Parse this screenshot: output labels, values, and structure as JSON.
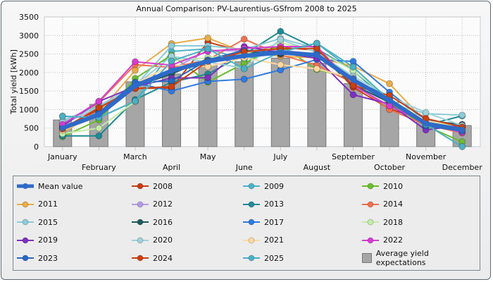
{
  "window": {
    "title": "Annual Comparison: PV-Laurentius-GSfrom 2008 to 2025"
  },
  "chart_data": {
    "type": "line",
    "title": "Annual Comparison: PV-Laurentius-GSfrom 2008 to 2025",
    "xlabel": "",
    "ylabel": "Total yield [kWh]",
    "ylim": [
      0,
      3500
    ],
    "yticks": [
      0,
      500,
      1000,
      1500,
      2000,
      2500,
      3000,
      3500
    ],
    "grid": true,
    "legend_position": "bottom",
    "categories": [
      "January",
      "February",
      "March",
      "April",
      "May",
      "June",
      "July",
      "August",
      "September",
      "October",
      "November",
      "December"
    ],
    "bars": {
      "name": "Average yield expectations",
      "color": "#a6a6a6",
      "values": [
        720,
        1140,
        1750,
        1960,
        2200,
        2290,
        2390,
        2250,
        1700,
        1200,
        700,
        570
      ]
    },
    "mean": {
      "name": "Mean value",
      "color": "#2e6ac8",
      "values": [
        500,
        860,
        1640,
        2050,
        2300,
        2450,
        2540,
        2470,
        1800,
        1250,
        620,
        460
      ]
    },
    "series": [
      {
        "name": "2008",
        "color": "#c83c12",
        "values": [
          500,
          1000,
          1570,
          1580,
          2820,
          2560,
          2680,
          2600,
          1600,
          1020,
          700,
          520
        ]
      },
      {
        "name": "2009",
        "color": "#4ab3c8",
        "values": [
          820,
          780,
          1230,
          2570,
          2640,
          2350,
          2580,
          2790,
          2050,
          1200,
          600,
          500
        ]
      },
      {
        "name": "2010",
        "color": "#6abe2e",
        "values": [
          270,
          720,
          1840,
          2470,
          1740,
          2250,
          2740,
          2080,
          1850,
          1150,
          560,
          130
        ]
      },
      {
        "name": "2011",
        "color": "#e8ac48",
        "values": [
          380,
          920,
          2060,
          2780,
          2930,
          2550,
          2440,
          2400,
          2170,
          1700,
          660,
          480
        ]
      },
      {
        "name": "2012",
        "color": "#b49ae6",
        "values": [
          620,
          1050,
          1680,
          2080,
          2600,
          2580,
          2600,
          2500,
          1750,
          1200,
          660,
          560
        ]
      },
      {
        "name": "2013",
        "color": "#1f8a96",
        "values": [
          290,
          290,
          1270,
          1740,
          1960,
          2490,
          3110,
          2640,
          2050,
          1250,
          580,
          830
        ]
      },
      {
        "name": "2014",
        "color": "#f07050",
        "values": [
          570,
          1200,
          2210,
          2140,
          2340,
          2900,
          2480,
          2200,
          1720,
          1000,
          590,
          370
        ]
      },
      {
        "name": "2015",
        "color": "#8ccbd8",
        "values": [
          700,
          1100,
          1640,
          2720,
          2720,
          2620,
          2920,
          2650,
          1680,
          1180,
          890,
          850
        ]
      },
      {
        "name": "2016",
        "color": "#1e5a5e",
        "values": [
          480,
          870,
          1620,
          1960,
          2370,
          2560,
          2500,
          2520,
          1660,
          1200,
          700,
          600
        ]
      },
      {
        "name": "2017",
        "color": "#2f7ae0",
        "values": [
          520,
          920,
          1720,
          1500,
          1760,
          1820,
          2070,
          2350,
          2300,
          1470,
          700,
          560
        ]
      },
      {
        "name": "2018",
        "color": "#c4ecaa",
        "values": [
          350,
          500,
          1220,
          2320,
          2400,
          2500,
          2800,
          2600,
          2050,
          1300,
          700,
          530
        ]
      },
      {
        "name": "2019",
        "color": "#7d30c0",
        "values": [
          560,
          1220,
          1620,
          1850,
          1860,
          2700,
          2540,
          2380,
          1400,
          1150,
          450,
          580
        ]
      },
      {
        "name": "2020",
        "color": "#9fd2dc",
        "values": [
          660,
          1050,
          1650,
          2440,
          2280,
          2120,
          2890,
          2540,
          1900,
          1350,
          920,
          570
        ]
      },
      {
        "name": "2021",
        "color": "#ffd9a0",
        "values": [
          440,
          820,
          1700,
          2200,
          2160,
          2400,
          2210,
          2100,
          1850,
          1250,
          700,
          480
        ]
      },
      {
        "name": "2022",
        "color": "#d63cd0",
        "values": [
          600,
          1220,
          2290,
          2200,
          2570,
          2650,
          2700,
          2700,
          1650,
          1100,
          640,
          380
        ]
      },
      {
        "name": "2023",
        "color": "#2868c4",
        "values": [
          480,
          900,
          1740,
          1770,
          2340,
          2600,
          2540,
          2500,
          1830,
          1300,
          560,
          420
        ]
      },
      {
        "name": "2024",
        "color": "#cc4010",
        "values": [
          480,
          1050,
          1570,
          1620,
          2300,
          2560,
          2640,
          2650,
          1650,
          1380,
          760,
          530
        ]
      },
      {
        "name": "2025",
        "color": "#4ab0c4",
        "values": [
          820,
          780,
          1230,
          2310,
          2640,
          2100,
          2550,
          2790,
          2150,
          1250,
          600,
          0
        ]
      }
    ]
  },
  "legend": {
    "items": [
      {
        "label": "Mean value",
        "type": "mean"
      },
      {
        "label": "2008"
      },
      {
        "label": "2009"
      },
      {
        "label": "2010"
      },
      {
        "label": "2011"
      },
      {
        "label": "2012"
      },
      {
        "label": "2013"
      },
      {
        "label": "2014"
      },
      {
        "label": "2015"
      },
      {
        "label": "2016"
      },
      {
        "label": "2017"
      },
      {
        "label": "2018"
      },
      {
        "label": "2019"
      },
      {
        "label": "2020"
      },
      {
        "label": "2021"
      },
      {
        "label": "2022"
      },
      {
        "label": "2023"
      },
      {
        "label": "2024"
      },
      {
        "label": "2025"
      },
      {
        "label": "Average yield expectations",
        "type": "bar"
      }
    ]
  }
}
